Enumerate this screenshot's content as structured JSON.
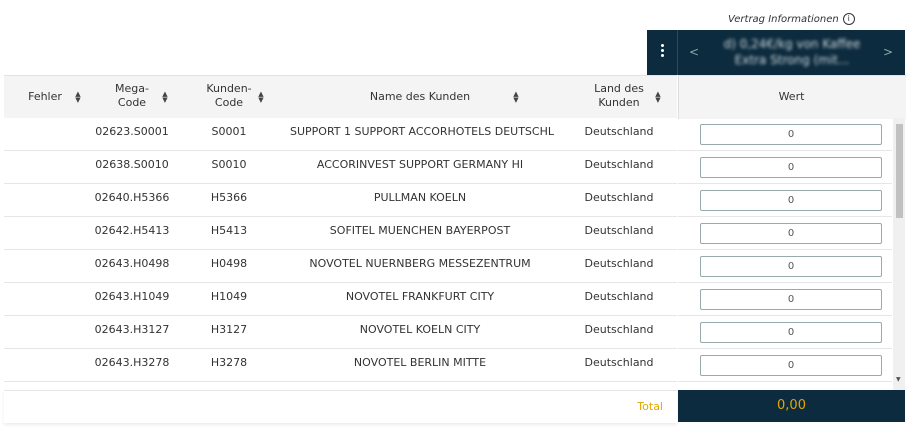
{
  "header": {
    "info_link": "Vertrag Informationen",
    "product_nav": {
      "prev": "<",
      "next": ">",
      "text": "d) 0,24€/kg von Kaffee Extra Strong (mit..."
    }
  },
  "table": {
    "columns": [
      "Fehler",
      "Mega-Code",
      "Kunden-Code",
      "Name des Kunden",
      "Land des Kunden"
    ],
    "value_column": "Wert",
    "rows": [
      [
        "",
        "02623.S0001",
        "S0001",
        "SUPPORT 1 SUPPORT ACCORHOTELS DEUTSCHL",
        "Deutschland",
        "0"
      ],
      [
        "",
        "02638.S0010",
        "S0010",
        "ACCORINVEST SUPPORT GERMANY HI",
        "Deutschland",
        "0"
      ],
      [
        "",
        "02640.H5366",
        "H5366",
        "PULLMAN KOELN",
        "Deutschland",
        "0"
      ],
      [
        "",
        "02642.H5413",
        "H5413",
        "SOFITEL MUENCHEN BAYERPOST",
        "Deutschland",
        "0"
      ],
      [
        "",
        "02643.H0498",
        "H0498",
        "NOVOTEL NUERNBERG MESSEZENTRUM",
        "Deutschland",
        "0"
      ],
      [
        "",
        "02643.H1049",
        "H1049",
        "NOVOTEL FRANKFURT CITY",
        "Deutschland",
        "0"
      ],
      [
        "",
        "02643.H3127",
        "H3127",
        "NOVOTEL KOELN CITY",
        "Deutschland",
        "0"
      ],
      [
        "",
        "02643.H3278",
        "H3278",
        "NOVOTEL BERLIN MITTE",
        "Deutschland",
        "0"
      ]
    ],
    "footer": {
      "label": "Total",
      "value": "0,00"
    }
  }
}
